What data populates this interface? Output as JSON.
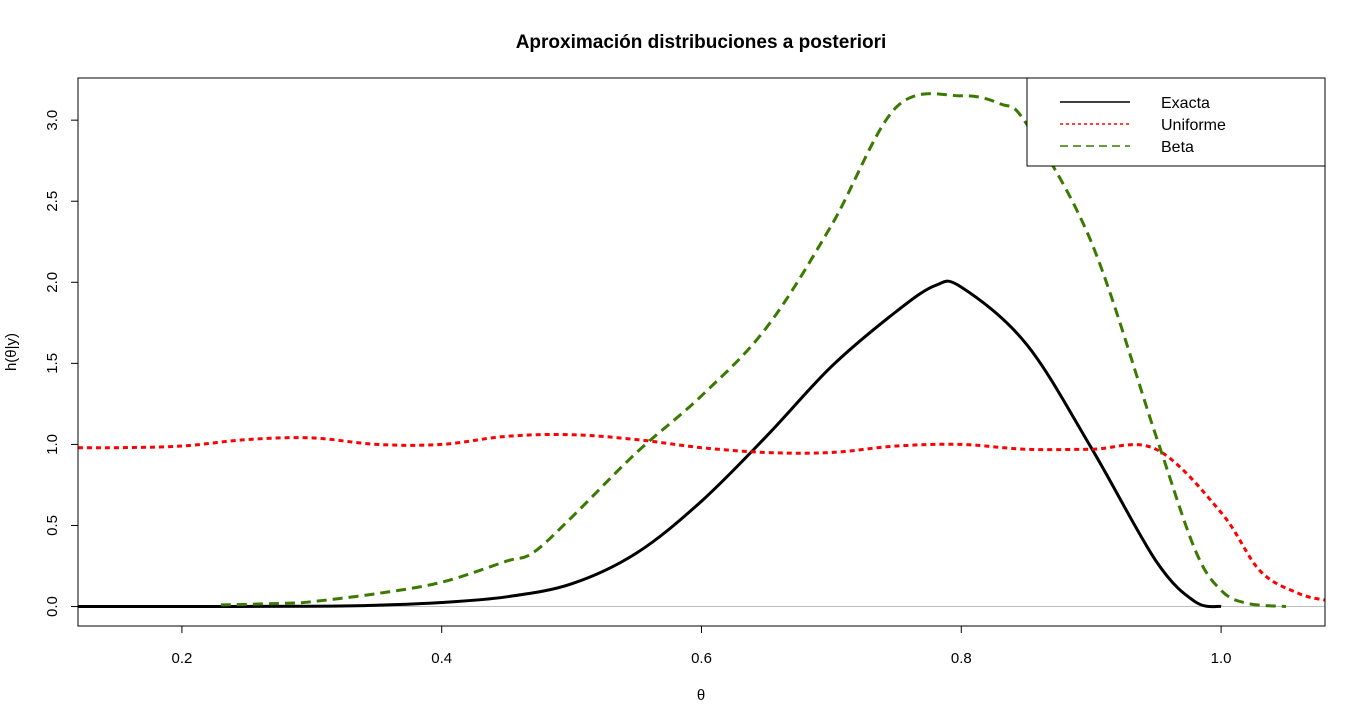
{
  "chart_data": {
    "type": "line",
    "title": "Aproximación distribuciones a posteriori",
    "xlabel": "θ",
    "ylabel": "h(θ|y)",
    "xlim": [
      0.12,
      1.08
    ],
    "ylim": [
      -0.12,
      3.26
    ],
    "x_ticks": [
      0.2,
      0.4,
      0.6,
      0.8,
      1.0
    ],
    "x_tick_labels": [
      "0.2",
      "0.4",
      "0.6",
      "0.8",
      "1.0"
    ],
    "y_ticks": [
      0.0,
      0.5,
      1.0,
      1.5,
      2.0,
      2.5,
      3.0
    ],
    "y_tick_labels": [
      "0.0",
      "0.5",
      "1.0",
      "1.5",
      "2.0",
      "2.5",
      "3.0"
    ],
    "grid": false,
    "legend_position": "top-right",
    "series": [
      {
        "name": "Exacta",
        "color": "#000000",
        "style": "solid",
        "x": [
          0.12,
          0.2,
          0.3,
          0.35,
          0.4,
          0.45,
          0.5,
          0.55,
          0.6,
          0.65,
          0.7,
          0.75,
          0.78,
          0.8,
          0.85,
          0.9,
          0.95,
          0.98,
          1.0
        ],
        "y": [
          0.0,
          0.0,
          0.002,
          0.008,
          0.025,
          0.06,
          0.14,
          0.33,
          0.65,
          1.05,
          1.48,
          1.82,
          1.98,
          1.97,
          1.62,
          0.98,
          0.28,
          0.03,
          0.0
        ]
      },
      {
        "name": "Uniforme",
        "color": "#ff0000",
        "style": "dotted",
        "x": [
          0.12,
          0.15,
          0.2,
          0.25,
          0.3,
          0.35,
          0.4,
          0.45,
          0.5,
          0.55,
          0.6,
          0.65,
          0.7,
          0.75,
          0.8,
          0.85,
          0.9,
          0.95,
          1.0,
          1.03,
          1.06,
          1.08
        ],
        "y": [
          0.98,
          0.98,
          0.99,
          1.03,
          1.04,
          1.0,
          1.0,
          1.05,
          1.06,
          1.03,
          0.98,
          0.95,
          0.95,
          0.99,
          1.0,
          0.97,
          0.97,
          0.97,
          0.58,
          0.22,
          0.08,
          0.04
        ]
      },
      {
        "name": "Beta",
        "color": "#3a7a00",
        "style": "dashed",
        "x": [
          0.23,
          0.28,
          0.3,
          0.35,
          0.4,
          0.45,
          0.47,
          0.5,
          0.55,
          0.6,
          0.65,
          0.7,
          0.75,
          0.8,
          0.83,
          0.85,
          0.9,
          0.95,
          0.98,
          1.0,
          1.02,
          1.05
        ],
        "y": [
          0.01,
          0.02,
          0.03,
          0.08,
          0.15,
          0.28,
          0.33,
          0.55,
          0.95,
          1.3,
          1.72,
          2.35,
          3.08,
          3.15,
          3.1,
          2.98,
          2.25,
          1.05,
          0.35,
          0.1,
          0.02,
          0.0
        ]
      }
    ]
  }
}
